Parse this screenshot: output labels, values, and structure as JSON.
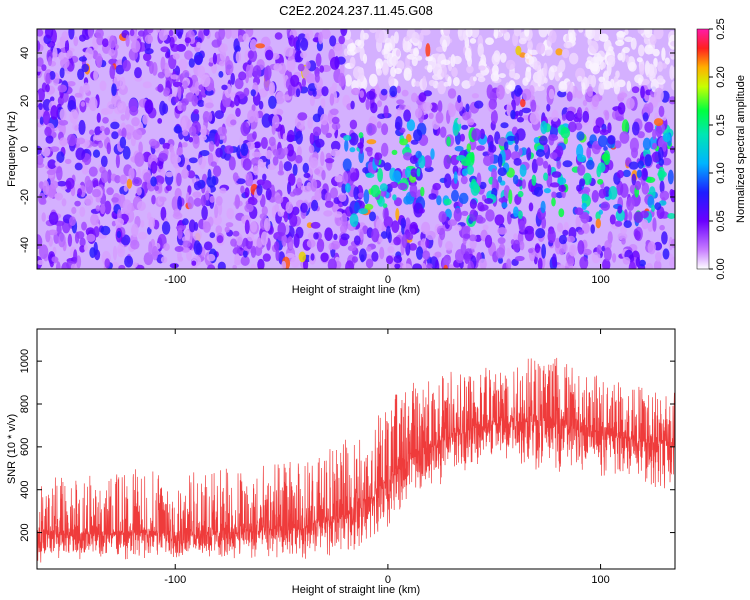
{
  "title": "C2E2.2024.237.11.45.G08",
  "chart_data": [
    {
      "type": "heatmap",
      "xlabel": "Height of straight line (km)",
      "ylabel": "Frequency (Hz)",
      "xlim": [
        -165,
        135
      ],
      "ylim": [
        -50,
        50
      ],
      "x_ticks": [
        -100,
        0,
        100
      ],
      "y_ticks": [
        -40,
        -20,
        0,
        20,
        40
      ],
      "colorbar": {
        "label": "Normalized spectral amplitude",
        "range": [
          0,
          0.25
        ],
        "ticks": [
          0.0,
          0.05,
          0.1,
          0.15,
          0.2,
          0.25
        ],
        "tick_labels": [
          "0.00",
          "0.05",
          "0.10",
          "0.15",
          "0.20",
          "0.25"
        ]
      },
      "description_regions": [
        {
          "x_range": [
            -165,
            -20
          ],
          "freq_range": [
            -50,
            50
          ],
          "amplitude": 0.04
        },
        {
          "x_range": [
            -20,
            135
          ],
          "freq_range": [
            -30,
            10
          ],
          "amplitude": 0.09
        },
        {
          "x_range": [
            -20,
            135
          ],
          "freq_range": [
            25,
            50
          ],
          "amplitude": 0.005
        }
      ]
    },
    {
      "type": "line",
      "xlabel": "Height of straight line (km)",
      "ylabel": "SNR (10 * v/v)",
      "xlim": [
        -165,
        135
      ],
      "ylim": [
        30,
        1150
      ],
      "x_ticks": [
        -100,
        0,
        100
      ],
      "y_ticks": [
        200,
        400,
        600,
        800,
        1000
      ],
      "color": "#ef3b3b",
      "envelope": {
        "x": [
          -165,
          -140,
          -120,
          -100,
          -80,
          -60,
          -40,
          -25,
          -10,
          0,
          10,
          25,
          40,
          60,
          80,
          100,
          120,
          135
        ],
        "low": [
          60,
          60,
          60,
          60,
          60,
          60,
          65,
          75,
          120,
          200,
          320,
          420,
          480,
          500,
          470,
          440,
          400,
          360
        ],
        "high": [
          480,
          470,
          500,
          480,
          500,
          520,
          540,
          600,
          700,
          820,
          900,
          950,
          1000,
          1050,
          1020,
          930,
          900,
          880
        ],
        "mean": [
          190,
          185,
          190,
          185,
          190,
          200,
          215,
          250,
          330,
          430,
          540,
          620,
          680,
          720,
          700,
          660,
          620,
          600
        ]
      }
    }
  ]
}
